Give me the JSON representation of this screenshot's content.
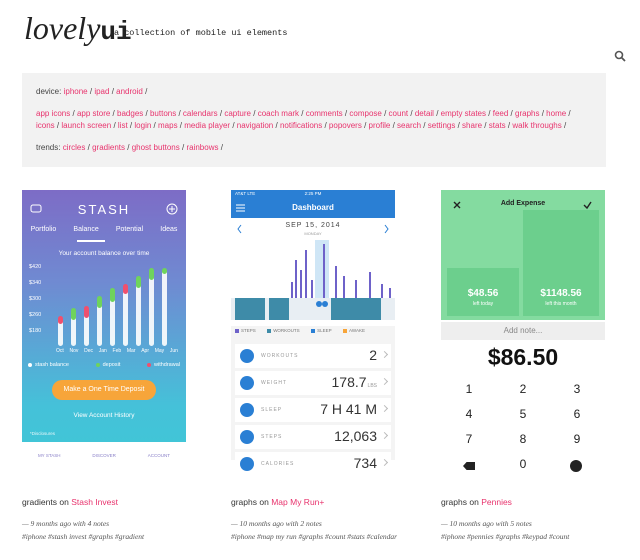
{
  "header": {
    "logo_script": "lovely",
    "logo_bold": "ui",
    "tagline": "a collection of mobile ui elements"
  },
  "filters": {
    "separator": "/",
    "device_label": "device:",
    "devices": [
      "iphone",
      "ipad",
      "android"
    ],
    "categories": [
      "app icons",
      "app store",
      "badges",
      "buttons",
      "calendars",
      "capture",
      "coach mark",
      "comments",
      "compose",
      "count",
      "detail",
      "empty states",
      "feed",
      "graphs",
      "home",
      "icons",
      "launch screen",
      "list",
      "login",
      "maps",
      "media player",
      "navigation",
      "notifications",
      "popovers",
      "profile",
      "search",
      "settings",
      "share",
      "stats",
      "walk throughs"
    ],
    "trends_label": "trends:",
    "trends": [
      "circles",
      "gradients",
      "ghost buttons",
      "rainbows"
    ]
  },
  "cards": [
    {
      "category": "gradients",
      "on": "on",
      "app": "Stash Invest",
      "meta": "— 9 months ago with 4 notes",
      "tags": [
        "#iphone",
        "#stash invest",
        "#graphs",
        "#gradient"
      ],
      "screen": {
        "brand": "STASH",
        "tabs": [
          "Portfolio",
          "Balance",
          "Potential",
          "Ideas"
        ],
        "chart_title": "Your account balance over time",
        "y_labels": [
          "$420",
          "$340",
          "$300",
          "$260",
          "$180"
        ],
        "months": [
          "Oct",
          "Nov",
          "Dec",
          "Jan",
          "Feb",
          "Mar",
          "Apr",
          "May",
          "Jun"
        ],
        "legend": [
          "stash balance",
          "deposit",
          "withdrawal"
        ],
        "button": "Make a One Time Deposit",
        "link": "View Account History",
        "disclosures": "*Disclosures",
        "nav": [
          "MY STASH",
          "DISCOVER",
          "ACCOUNT"
        ]
      }
    },
    {
      "category": "graphs",
      "on": "on",
      "app": "Map My Run+",
      "meta": "— 10 months ago with 2 notes",
      "tags": [
        "#iphone",
        "#map my run",
        "#graphs",
        "#count",
        "#stats",
        "#calendar"
      ],
      "screen": {
        "carrier": "AT&T LTE",
        "time": "2:25 PM",
        "title": "Dashboard",
        "date": "SEP 15, 2014",
        "weekday": "MONDAY",
        "legend": [
          "STEPS",
          "WORKOUTS",
          "SLEEP",
          "AWAKE"
        ],
        "rows": [
          {
            "label": "WORKOUTS",
            "value": "2",
            "unit": ""
          },
          {
            "label": "WEIGHT",
            "value": "178.7",
            "unit": "LBS"
          },
          {
            "label": "SLEEP",
            "value": "7 H 41 M",
            "unit": ""
          },
          {
            "label": "STEPS",
            "value": "12,063",
            "unit": ""
          },
          {
            "label": "CALORIES",
            "value": "734",
            "unit": ""
          }
        ]
      }
    },
    {
      "category": "graphs",
      "on": "on",
      "app": "Pennies",
      "meta": "— 10 months ago with 5 notes",
      "tags": [
        "#iphone",
        "#pennies",
        "#graphs",
        "#keypad",
        "#count"
      ],
      "screen": {
        "title": "Add Expense",
        "today_amount": "$48.56",
        "today_label": "left today",
        "month_amount": "$1148.56",
        "month_label": "left this month",
        "note": "Add note...",
        "total": "$86.50",
        "keys": [
          "1",
          "2",
          "3",
          "4",
          "5",
          "6",
          "7",
          "8",
          "9",
          "0"
        ]
      }
    }
  ]
}
